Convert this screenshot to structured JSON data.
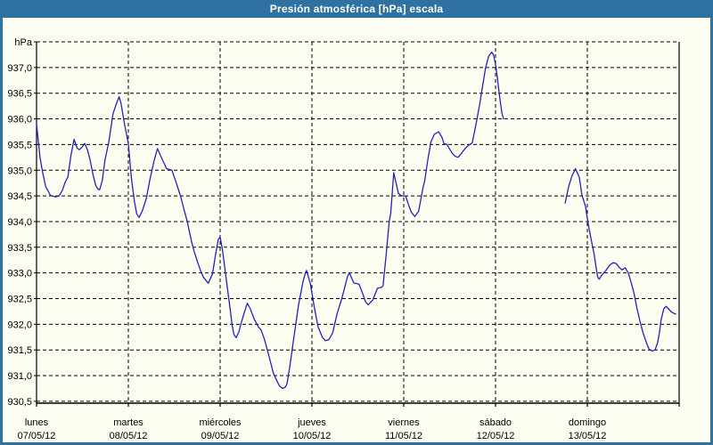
{
  "window": {
    "title": "Presión atmosférica [hPa] escala"
  },
  "colors": {
    "titlebar": "#2f72a2",
    "window_border": "#2f72a2",
    "panel_background": "#fcfef2",
    "line": "#2323b8",
    "grid": "#000000",
    "text": "#000000",
    "title_text": "#ffffff"
  },
  "chart_data": {
    "type": "line",
    "title": "Presión atmosférica [hPa] escala",
    "ylabel": "hPa",
    "xlabel": "",
    "ylim": [
      930.5,
      937.5
    ],
    "y_tick_step": 0.5,
    "grid": "dashed",
    "legend": "none",
    "x_span_hours": 168,
    "y_grid": [
      {
        "value": 937.5,
        "label": "hPa"
      },
      {
        "value": 937.0,
        "label": "937,0"
      },
      {
        "value": 936.5,
        "label": "936,5"
      },
      {
        "value": 936.0,
        "label": "936,0"
      },
      {
        "value": 935.5,
        "label": "935,5"
      },
      {
        "value": 935.0,
        "label": "935,0"
      },
      {
        "value": 934.5,
        "label": "934,5"
      },
      {
        "value": 934.0,
        "label": "934,0"
      },
      {
        "value": 933.5,
        "label": "933,5"
      },
      {
        "value": 933.0,
        "label": "933,0"
      },
      {
        "value": 932.5,
        "label": "932,5"
      },
      {
        "value": 932.0,
        "label": "932,0"
      },
      {
        "value": 931.5,
        "label": "931,5"
      },
      {
        "value": 931.0,
        "label": "931,0"
      },
      {
        "value": 930.5,
        "label": "930,5"
      }
    ],
    "x_days": [
      {
        "name": "lunes",
        "date": "07/05/12"
      },
      {
        "name": "martes",
        "date": "08/05/12"
      },
      {
        "name": "miércoles",
        "date": "09/05/12"
      },
      {
        "name": "jueves",
        "date": "10/05/12"
      },
      {
        "name": "viernes",
        "date": "11/05/12"
      },
      {
        "name": "sábado",
        "date": "12/05/12"
      },
      {
        "name": "domingo",
        "date": "13/05/12"
      }
    ],
    "series": [
      {
        "name": "Presión atmosférica",
        "color": "#2323b8",
        "unit": "hPa",
        "x_unit": "hours_from_monday_00h",
        "segments": [
          [
            [
              0,
              935.9
            ],
            [
              0.5,
              935.55
            ],
            [
              0.9,
              935.25
            ],
            [
              1.6,
              934.95
            ],
            [
              2.4,
              934.68
            ],
            [
              3,
              934.6
            ],
            [
              3.6,
              934.51
            ],
            [
              4.9,
              934.48
            ],
            [
              5.9,
              934.5
            ],
            [
              6.7,
              934.6
            ],
            [
              7.5,
              934.77
            ],
            [
              8.2,
              934.87
            ],
            [
              9,
              935.29
            ],
            [
              9.8,
              935.6
            ],
            [
              10.6,
              935.43
            ],
            [
              11.2,
              935.4
            ],
            [
              11.9,
              935.45
            ],
            [
              12.6,
              935.52
            ],
            [
              13.3,
              935.4
            ],
            [
              14,
              935.2
            ],
            [
              14.8,
              934.9
            ],
            [
              15.5,
              934.7
            ],
            [
              16.1,
              934.63
            ],
            [
              16.5,
              934.62
            ],
            [
              17.2,
              934.8
            ],
            [
              17.9,
              935.2
            ],
            [
              18.9,
              935.55
            ],
            [
              20,
              936.1
            ],
            [
              20.9,
              936.3
            ],
            [
              21.6,
              936.43
            ],
            [
              22.1,
              936.3
            ],
            [
              23,
              935.9
            ],
            [
              24,
              935.52
            ],
            [
              24.8,
              934.85
            ],
            [
              25.6,
              934.38
            ],
            [
              26.2,
              934.15
            ],
            [
              26.8,
              934.08
            ],
            [
              27.6,
              934.2
            ],
            [
              28.7,
              934.45
            ],
            [
              29.6,
              934.8
            ],
            [
              30.7,
              935.18
            ],
            [
              31.6,
              935.42
            ],
            [
              33.1,
              935.17
            ],
            [
              34,
              935.03
            ],
            [
              35.4,
              935.0
            ],
            [
              36.6,
              934.74
            ],
            [
              37.7,
              934.48
            ],
            [
              38.6,
              934.22
            ],
            [
              39.4,
              934.0
            ],
            [
              40.5,
              933.62
            ],
            [
              41.2,
              933.42
            ],
            [
              42.1,
              933.21
            ],
            [
              42.9,
              933.04
            ],
            [
              43.6,
              932.92
            ],
            [
              44.9,
              932.8
            ],
            [
              46,
              932.98
            ],
            [
              46.8,
              933.35
            ],
            [
              47.5,
              933.65
            ],
            [
              48,
              933.7
            ],
            [
              48.6,
              933.45
            ],
            [
              49.2,
              933.1
            ],
            [
              49.9,
              932.7
            ],
            [
              50.6,
              932.3
            ],
            [
              51.1,
              932.0
            ],
            [
              51.6,
              931.8
            ],
            [
              52.2,
              931.74
            ],
            [
              52.9,
              931.85
            ],
            [
              53.6,
              932.05
            ],
            [
              54.4,
              932.25
            ],
            [
              55.1,
              932.41
            ],
            [
              55.9,
              932.3
            ],
            [
              56.9,
              932.1
            ],
            [
              58,
              931.95
            ],
            [
              58.7,
              931.89
            ],
            [
              59.4,
              931.75
            ],
            [
              59.9,
              931.62
            ],
            [
              60.7,
              931.4
            ],
            [
              61.9,
              931.05
            ],
            [
              62.7,
              930.92
            ],
            [
              63.5,
              930.8
            ],
            [
              64.3,
              930.75
            ],
            [
              65.1,
              930.78
            ],
            [
              65.5,
              930.85
            ],
            [
              66.2,
              931.17
            ],
            [
              67.3,
              931.75
            ],
            [
              68.5,
              932.38
            ],
            [
              69.7,
              932.84
            ],
            [
              70.3,
              933.0
            ],
            [
              70.6,
              933.05
            ],
            [
              71.6,
              932.78
            ],
            [
              72.8,
              932.26
            ],
            [
              73.6,
              931.95
            ],
            [
              74.7,
              931.75
            ],
            [
              75.5,
              931.68
            ],
            [
              76.4,
              931.7
            ],
            [
              77.4,
              931.83
            ],
            [
              78.6,
              932.21
            ],
            [
              79.8,
              932.5
            ],
            [
              80.5,
              932.7
            ],
            [
              81.3,
              932.93
            ],
            [
              81.8,
              933.0
            ],
            [
              82.9,
              932.81
            ],
            [
              83.2,
              932.8
            ],
            [
              84.3,
              932.78
            ],
            [
              85.2,
              932.61
            ],
            [
              86,
              932.44
            ],
            [
              86.7,
              932.38
            ],
            [
              87.9,
              932.47
            ],
            [
              89.1,
              932.7
            ],
            [
              90.2,
              932.72
            ],
            [
              90.6,
              932.75
            ],
            [
              91.4,
              933.36
            ],
            [
              92.2,
              934.0
            ],
            [
              92.6,
              934.16
            ],
            [
              93.4,
              934.95
            ],
            [
              94.6,
              934.55
            ],
            [
              95.5,
              934.5
            ],
            [
              96.5,
              934.5
            ],
            [
              97.2,
              934.34
            ],
            [
              98,
              934.18
            ],
            [
              98.9,
              934.1
            ],
            [
              99.9,
              934.2
            ],
            [
              101,
              934.65
            ],
            [
              101.5,
              934.8
            ],
            [
              102.3,
              935.2
            ],
            [
              103.1,
              935.55
            ],
            [
              104,
              935.7
            ],
            [
              105.1,
              935.75
            ],
            [
              106,
              935.64
            ],
            [
              106.5,
              935.52
            ],
            [
              107.3,
              935.5
            ],
            [
              108.1,
              935.4
            ],
            [
              108.8,
              935.32
            ],
            [
              109.5,
              935.27
            ],
            [
              110.2,
              935.25
            ],
            [
              111,
              935.32
            ],
            [
              111.6,
              935.38
            ],
            [
              112.4,
              935.45
            ],
            [
              113.2,
              935.5
            ],
            [
              113.9,
              935.53
            ],
            [
              114.5,
              935.75
            ],
            [
              115.1,
              935.98
            ],
            [
              115.9,
              936.3
            ],
            [
              116.7,
              936.67
            ],
            [
              117.4,
              936.99
            ],
            [
              118.2,
              937.22
            ],
            [
              119,
              937.3
            ],
            [
              119.5,
              937.24
            ],
            [
              120.1,
              937.02
            ],
            [
              120.5,
              936.79
            ],
            [
              120.9,
              936.53
            ],
            [
              121.3,
              936.3
            ],
            [
              121.7,
              936.1
            ],
            [
              122.1,
              936.0
            ]
          ],
          [
            [
              138.2,
              934.36
            ],
            [
              139.1,
              934.68
            ],
            [
              140,
              934.89
            ],
            [
              140.9,
              935.03
            ],
            [
              141.9,
              934.86
            ],
            [
              142.6,
              934.51
            ],
            [
              143.5,
              934.3
            ],
            [
              144.2,
              933.96
            ],
            [
              145,
              933.65
            ],
            [
              145.8,
              933.36
            ],
            [
              146.3,
              933.1
            ],
            [
              146.7,
              932.92
            ],
            [
              147.1,
              932.88
            ],
            [
              147.7,
              932.95
            ],
            [
              148.9,
              933.05
            ],
            [
              149.8,
              933.15
            ],
            [
              150.8,
              933.2
            ],
            [
              151.6,
              933.18
            ],
            [
              152.4,
              933.1
            ],
            [
              153.1,
              933.06
            ],
            [
              153.9,
              933.1
            ],
            [
              154.7,
              933.0
            ],
            [
              155.5,
              932.8
            ],
            [
              156.2,
              932.6
            ],
            [
              157,
              932.3
            ],
            [
              157.8,
              932.05
            ],
            [
              158.6,
              931.82
            ],
            [
              159.4,
              931.65
            ],
            [
              160.1,
              931.52
            ],
            [
              160.9,
              931.48
            ],
            [
              161.7,
              931.5
            ],
            [
              162.4,
              931.65
            ],
            [
              162.9,
              931.86
            ],
            [
              163.3,
              932.09
            ],
            [
              164,
              932.3
            ],
            [
              164.6,
              932.35
            ],
            [
              165.2,
              932.3
            ],
            [
              166,
              932.24
            ],
            [
              166.7,
              932.21
            ],
            [
              167.1,
              932.2
            ]
          ]
        ]
      }
    ]
  }
}
